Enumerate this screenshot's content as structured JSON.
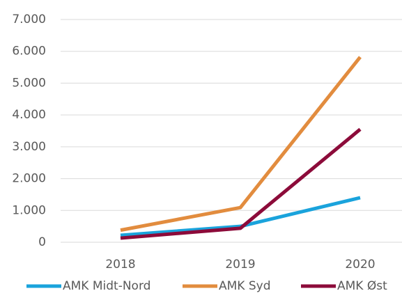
{
  "chart_data": {
    "type": "line",
    "categories": [
      "2018",
      "2019",
      "2020"
    ],
    "series": [
      {
        "name": "AMK Midt-Nord",
        "color": "#1aa3dc",
        "values": [
          220,
          500,
          1400
        ]
      },
      {
        "name": "AMK Syd",
        "color": "#e28c3e",
        "values": [
          380,
          1090,
          5820
        ]
      },
      {
        "name": "AMK Øst",
        "color": "#8c0b3a",
        "values": [
          130,
          440,
          3550
        ]
      }
    ],
    "ylim": [
      0,
      7000
    ],
    "yticks": [
      0,
      {
        "value": 1000,
        "label": "1.000"
      },
      {
        "value": 2000,
        "label": "2.000"
      },
      {
        "value": 3000,
        "label": "3.000"
      },
      {
        "value": 4000,
        "label": "4.000"
      },
      {
        "value": 5000,
        "label": "5.000"
      },
      {
        "value": 6000,
        "label": "6.000"
      },
      {
        "value": 7000,
        "label": "7.000"
      }
    ],
    "grid": true,
    "legend": "bottom"
  }
}
